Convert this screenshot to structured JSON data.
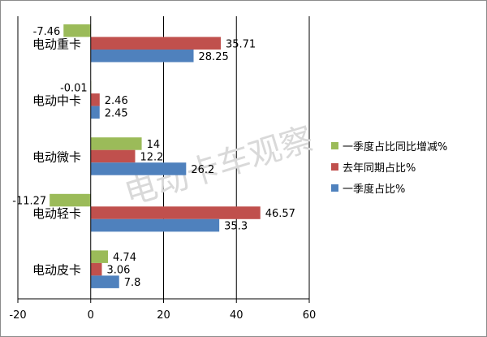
{
  "chart_data": {
    "type": "bar",
    "orientation": "horizontal",
    "categories": [
      "电动重卡",
      "电动中卡",
      "电动微卡",
      "电动轻卡",
      "电动皮卡"
    ],
    "series": [
      {
        "name": "一季度占比同比增减%",
        "color": "#9BBB59",
        "values": [
          -7.46,
          -0.01,
          14,
          -11.27,
          4.74
        ]
      },
      {
        "name": "去年同期占比%",
        "color": "#C0504D",
        "values": [
          35.71,
          2.46,
          12.2,
          46.57,
          3.06
        ]
      },
      {
        "name": "一季度占比%",
        "color": "#4F81BD",
        "values": [
          28.25,
          2.45,
          26.2,
          35.3,
          7.8
        ]
      }
    ],
    "data_labels": [
      [
        "-7.46",
        "-0.01",
        "14",
        "-11.27",
        "4.74"
      ],
      [
        "35.71",
        "2.46",
        "12.2",
        "46.57",
        "3.06"
      ],
      [
        "28.25",
        "2.45",
        "26.2",
        "35.3",
        "7.8"
      ]
    ],
    "xlim": [
      -20,
      60
    ],
    "xticks": [
      -20,
      0,
      20,
      40,
      60
    ],
    "xtick_labels": [
      "-20",
      "0",
      "20",
      "40",
      "60"
    ],
    "grid": "vertical",
    "legend_position": "right",
    "title": "",
    "xlabel": "",
    "ylabel": ""
  },
  "watermark": "电动卡车观察"
}
